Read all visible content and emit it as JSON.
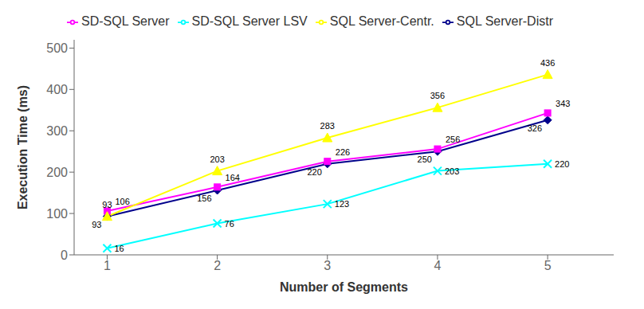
{
  "chart_data": {
    "type": "line",
    "x": [
      1,
      2,
      3,
      4,
      5
    ],
    "series": [
      {
        "name": "SQL Server-Distr",
        "color": "#00008B",
        "marker": "diamond",
        "values": [
          93,
          156,
          220,
          250,
          326
        ]
      },
      {
        "name": "SD-SQL Server",
        "color": "#FF00FF",
        "marker": "square",
        "values": [
          106,
          164,
          226,
          256,
          343
        ]
      },
      {
        "name": "SQL Server-Centr.",
        "color": "#FFFF00",
        "marker": "triangle",
        "values": [
          93,
          203,
          283,
          356,
          436
        ]
      },
      {
        "name": "SD-SQL Server LSV",
        "color": "#00FFFF",
        "marker": "cross",
        "values": [
          16,
          76,
          123,
          203,
          220
        ]
      }
    ],
    "xlabel": "Number of Segments",
    "ylabel": "Execution Time (ms)",
    "xlim": [
      0.7,
      5.6
    ],
    "ylim": [
      0,
      520
    ],
    "xticks": [
      1,
      2,
      3,
      4,
      5
    ],
    "yticks": [
      0,
      100,
      200,
      300,
      400,
      500
    ],
    "data_labels": true,
    "legend": "top",
    "grid": false
  }
}
